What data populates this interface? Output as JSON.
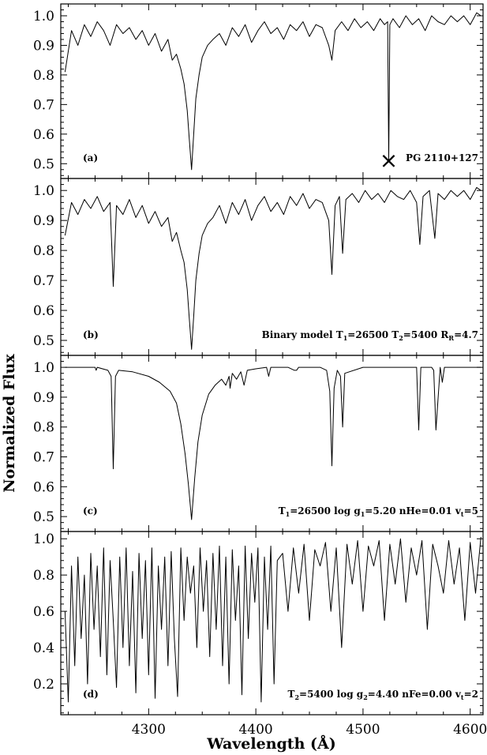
{
  "figure": {
    "ylabel": "Normalized Flux",
    "xlabel": "Wavelength (Å)"
  },
  "chart_data": [
    {
      "type": "line",
      "panel": "(a)",
      "label_lines": [
        {
          "text": "PG 2110+127"
        }
      ],
      "marker": {
        "symbol": "×",
        "x": 4524,
        "y": 0.51
      },
      "xlim": [
        4218,
        4612
      ],
      "ylim": [
        0.45,
        1.04
      ],
      "yticks": [
        0.5,
        0.6,
        0.7,
        0.8,
        0.9,
        1.0
      ],
      "ytick_labels": [
        "0.5",
        "0.6",
        "0.7",
        "0.8",
        "0.9",
        "1.0"
      ],
      "series": [
        {
          "x": [
            4222,
            4228,
            4234,
            4240,
            4246,
            4252,
            4258,
            4264,
            4270,
            4276,
            4282,
            4288,
            4294,
            4300,
            4306,
            4312,
            4318,
            4322,
            4326,
            4330,
            4333,
            4336,
            4338,
            4340,
            4342,
            4344,
            4347,
            4350,
            4355,
            4360,
            4366,
            4372,
            4378,
            4384,
            4390,
            4396,
            4402,
            4408,
            4414,
            4420,
            4426,
            4432,
            4438,
            4444,
            4450,
            4456,
            4462,
            4468,
            4471,
            4474,
            4480,
            4486,
            4492,
            4498,
            4504,
            4510,
            4516,
            4520,
            4523,
            4524,
            4525,
            4528,
            4534,
            4540,
            4546,
            4552,
            4558,
            4564,
            4570,
            4576,
            4582,
            4588,
            4594,
            4600,
            4606,
            4610
          ],
          "y": [
            0.81,
            0.95,
            0.9,
            0.97,
            0.93,
            0.98,
            0.95,
            0.9,
            0.97,
            0.94,
            0.96,
            0.92,
            0.95,
            0.9,
            0.94,
            0.88,
            0.92,
            0.85,
            0.87,
            0.82,
            0.77,
            0.68,
            0.58,
            0.48,
            0.6,
            0.72,
            0.8,
            0.86,
            0.9,
            0.92,
            0.94,
            0.9,
            0.96,
            0.93,
            0.97,
            0.91,
            0.95,
            0.98,
            0.94,
            0.96,
            0.92,
            0.97,
            0.95,
            0.98,
            0.93,
            0.97,
            0.96,
            0.9,
            0.85,
            0.95,
            0.98,
            0.95,
            0.99,
            0.96,
            0.98,
            0.95,
            0.99,
            0.97,
            0.98,
            0.51,
            0.97,
            0.99,
            0.96,
            1.0,
            0.97,
            0.99,
            0.95,
            1.0,
            0.98,
            0.97,
            1.0,
            0.98,
            1.0,
            0.97,
            1.01,
            1.0
          ]
        }
      ]
    },
    {
      "type": "line",
      "panel": "(b)",
      "label_lines": [
        {
          "text": "Binary model T"
        },
        {
          "text": "1",
          "sub": true
        },
        {
          "text": "=26500   T"
        },
        {
          "text": "2",
          "sub": true
        },
        {
          "text": "=5400  R"
        },
        {
          "text": "R",
          "sub": true
        },
        {
          "text": "=4.7"
        }
      ],
      "xlim": [
        4218,
        4612
      ],
      "ylim": [
        0.45,
        1.04
      ],
      "yticks": [
        0.5,
        0.6,
        0.7,
        0.8,
        0.9,
        1.0
      ],
      "ytick_labels": [
        "0.5",
        "0.6",
        "0.7",
        "0.8",
        "0.9",
        "1.0"
      ],
      "series": [
        {
          "x": [
            4222,
            4228,
            4234,
            4240,
            4246,
            4252,
            4258,
            4264,
            4267,
            4270,
            4276,
            4282,
            4288,
            4294,
            4300,
            4306,
            4312,
            4318,
            4322,
            4326,
            4330,
            4333,
            4336,
            4338,
            4340,
            4342,
            4344,
            4347,
            4350,
            4355,
            4360,
            4366,
            4372,
            4378,
            4384,
            4390,
            4396,
            4402,
            4408,
            4414,
            4420,
            4426,
            4432,
            4438,
            4444,
            4450,
            4456,
            4462,
            4468,
            4471,
            4474,
            4478,
            4481,
            4484,
            4490,
            4496,
            4502,
            4508,
            4514,
            4520,
            4526,
            4532,
            4538,
            4544,
            4550,
            4553,
            4556,
            4562,
            4567,
            4570,
            4576,
            4582,
            4588,
            4594,
            4600,
            4606,
            4610
          ],
          "y": [
            0.85,
            0.96,
            0.92,
            0.97,
            0.94,
            0.98,
            0.93,
            0.96,
            0.68,
            0.95,
            0.92,
            0.97,
            0.91,
            0.95,
            0.89,
            0.93,
            0.88,
            0.91,
            0.83,
            0.86,
            0.8,
            0.76,
            0.67,
            0.57,
            0.47,
            0.58,
            0.7,
            0.79,
            0.85,
            0.89,
            0.91,
            0.95,
            0.89,
            0.96,
            0.92,
            0.97,
            0.9,
            0.95,
            0.98,
            0.93,
            0.96,
            0.92,
            0.98,
            0.95,
            0.99,
            0.94,
            0.97,
            0.96,
            0.9,
            0.72,
            0.95,
            0.98,
            0.79,
            0.97,
            0.99,
            0.96,
            1.0,
            0.97,
            0.99,
            0.96,
            1.0,
            0.98,
            0.97,
            1.0,
            0.96,
            0.82,
            0.98,
            1.0,
            0.84,
            0.99,
            0.97,
            1.0,
            0.98,
            1.0,
            0.97,
            1.01,
            1.0
          ]
        }
      ]
    },
    {
      "type": "line",
      "panel": "(c)",
      "label_lines": [
        {
          "text": "T"
        },
        {
          "text": "1",
          "sub": true
        },
        {
          "text": "=26500   log g"
        },
        {
          "text": "1",
          "sub": true
        },
        {
          "text": "=5.20   nHe=0.01  v"
        },
        {
          "text": "t",
          "sub": true
        },
        {
          "text": "=5"
        }
      ],
      "xlim": [
        4218,
        4612
      ],
      "ylim": [
        0.45,
        1.04
      ],
      "yticks": [
        0.5,
        0.6,
        0.7,
        0.8,
        0.9,
        1.0
      ],
      "ytick_labels": [
        "0.5",
        "0.6",
        "0.7",
        "0.8",
        "0.9",
        "1.0"
      ],
      "series": [
        {
          "x": [
            4222,
            4240,
            4250,
            4251,
            4252,
            4262,
            4265,
            4267,
            4269,
            4272,
            4285,
            4300,
            4310,
            4320,
            4326,
            4330,
            4334,
            4337,
            4340,
            4343,
            4346,
            4350,
            4356,
            4362,
            4368,
            4372,
            4375,
            4376,
            4378,
            4382,
            4386,
            4389,
            4392,
            4400,
            4410,
            4412,
            4414,
            4430,
            4436,
            4438,
            4440,
            4460,
            4466,
            4469,
            4471,
            4473,
            4476,
            4479,
            4481,
            4483,
            4500,
            4540,
            4550,
            4552,
            4554,
            4564,
            4566,
            4568,
            4572,
            4574,
            4576,
            4610
          ],
          "y": [
            1.0,
            1.0,
            1.0,
            0.99,
            1.0,
            0.99,
            0.97,
            0.66,
            0.97,
            0.99,
            0.985,
            0.97,
            0.95,
            0.92,
            0.88,
            0.81,
            0.71,
            0.61,
            0.49,
            0.63,
            0.75,
            0.84,
            0.91,
            0.94,
            0.96,
            0.94,
            0.97,
            0.93,
            0.98,
            0.96,
            0.985,
            0.94,
            0.99,
            0.995,
            1.0,
            0.97,
            1.0,
            1.0,
            0.99,
            0.99,
            1.0,
            1.0,
            0.99,
            0.92,
            0.67,
            0.93,
            0.99,
            0.97,
            0.8,
            0.98,
            1.0,
            1.0,
            1.0,
            0.79,
            1.0,
            1.0,
            0.99,
            0.79,
            1.0,
            0.95,
            1.0,
            1.0
          ]
        }
      ]
    },
    {
      "type": "line",
      "panel": "(d)",
      "label_lines": [
        {
          "text": "T"
        },
        {
          "text": "2",
          "sub": true
        },
        {
          "text": "=5400   log g"
        },
        {
          "text": "2",
          "sub": true
        },
        {
          "text": "=4.40   nFe=0.00  v"
        },
        {
          "text": "t",
          "sub": true
        },
        {
          "text": "=2"
        }
      ],
      "xlim": [
        4218,
        4612
      ],
      "ylim": [
        0.03,
        1.04
      ],
      "yticks": [
        0.2,
        0.4,
        0.6,
        0.8,
        1.0
      ],
      "ytick_labels": [
        "0.2",
        "0.4",
        "0.6",
        "0.8",
        "1.0"
      ],
      "xticks": [
        4300,
        4400,
        4500,
        4600
      ],
      "xtick_labels": [
        "4300",
        "4400",
        "4500",
        "4600"
      ],
      "series": [
        {
          "x": [
            4222,
            4225,
            4228,
            4231,
            4234,
            4237,
            4240,
            4243,
            4246,
            4249,
            4252,
            4255,
            4258,
            4261,
            4264,
            4267,
            4270,
            4273,
            4276,
            4279,
            4282,
            4285,
            4288,
            4291,
            4294,
            4297,
            4300,
            4303,
            4306,
            4309,
            4312,
            4315,
            4318,
            4321,
            4324,
            4327,
            4330,
            4333,
            4336,
            4339,
            4342,
            4345,
            4348,
            4351,
            4354,
            4357,
            4360,
            4363,
            4366,
            4369,
            4372,
            4375,
            4378,
            4381,
            4384,
            4387,
            4390,
            4393,
            4396,
            4399,
            4402,
            4405,
            4408,
            4411,
            4414,
            4417,
            4420,
            4425,
            4430,
            4435,
            4440,
            4445,
            4450,
            4455,
            4460,
            4465,
            4470,
            4475,
            4480,
            4485,
            4490,
            4495,
            4500,
            4505,
            4510,
            4515,
            4520,
            4525,
            4530,
            4535,
            4540,
            4545,
            4550,
            4555,
            4560,
            4565,
            4570,
            4575,
            4580,
            4585,
            4590,
            4595,
            4600,
            4605,
            4610
          ],
          "y": [
            0.6,
            0.1,
            0.85,
            0.3,
            0.9,
            0.45,
            0.8,
            0.2,
            0.92,
            0.5,
            0.85,
            0.35,
            0.95,
            0.25,
            0.88,
            0.55,
            0.18,
            0.9,
            0.4,
            0.95,
            0.3,
            0.82,
            0.15,
            0.92,
            0.45,
            0.88,
            0.25,
            0.95,
            0.12,
            0.85,
            0.5,
            0.9,
            0.3,
            0.93,
            0.45,
            0.13,
            0.95,
            0.55,
            0.9,
            0.7,
            0.85,
            0.4,
            0.95,
            0.6,
            0.88,
            0.35,
            0.92,
            0.5,
            0.96,
            0.3,
            0.9,
            0.2,
            0.94,
            0.55,
            0.85,
            0.14,
            0.96,
            0.45,
            0.92,
            0.65,
            0.95,
            0.1,
            0.9,
            0.5,
            0.96,
            0.2,
            0.88,
            0.92,
            0.6,
            0.95,
            0.7,
            0.97,
            0.55,
            0.94,
            0.85,
            0.98,
            0.6,
            0.95,
            0.4,
            0.97,
            0.75,
            0.99,
            0.6,
            0.96,
            0.85,
            0.99,
            0.55,
            0.97,
            0.75,
            1.0,
            0.65,
            0.95,
            0.8,
            0.99,
            0.5,
            0.97,
            0.85,
            0.7,
            0.99,
            0.75,
            0.95,
            0.55,
            0.98,
            0.7,
            1.01
          ]
        }
      ]
    }
  ]
}
